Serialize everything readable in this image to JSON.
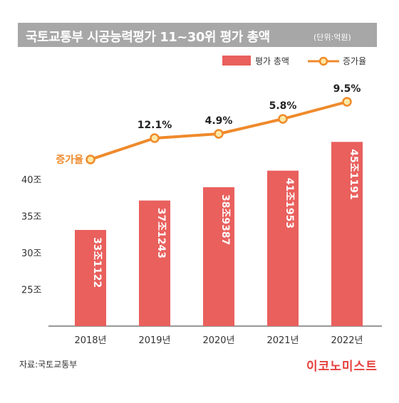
{
  "header": {
    "title": "국토교통부 시공능력평가 11~30위 평가 총액",
    "unit": "(단위:억원)"
  },
  "legend": {
    "bar_label": "평가 총액",
    "line_label": "증가율"
  },
  "colors": {
    "bar": "#e9605d",
    "line": "#ef8a2b",
    "marker_fill": "#fbe9a6",
    "title_bg": "#a7a7a7",
    "brand": "#e5403c"
  },
  "chart_data": {
    "type": "bar",
    "categories": [
      "2018년",
      "2019년",
      "2020년",
      "2021년",
      "2022년"
    ],
    "series": [
      {
        "name": "평가 총액",
        "type": "bar",
        "values": [
          331122,
          371243,
          389387,
          411953,
          451191
        ],
        "labels": [
          "33조1122",
          "37조1243",
          "38조9387",
          "41조1953",
          "45조1191"
        ]
      },
      {
        "name": "증가율",
        "type": "line",
        "point_labels": [
          "증가율",
          "12.1%",
          "4.9%",
          "5.8%",
          "9.5%"
        ]
      }
    ],
    "y_ticks": [
      250000,
      300000,
      350000,
      400000
    ],
    "y_tick_labels": [
      "25조",
      "30조",
      "35조",
      "40조"
    ],
    "ylim": [
      200000,
      500000
    ],
    "grid": false,
    "legend_position": "top-right"
  },
  "footer": {
    "source": "자료:국토교통부",
    "brand": "이코노미스트"
  }
}
